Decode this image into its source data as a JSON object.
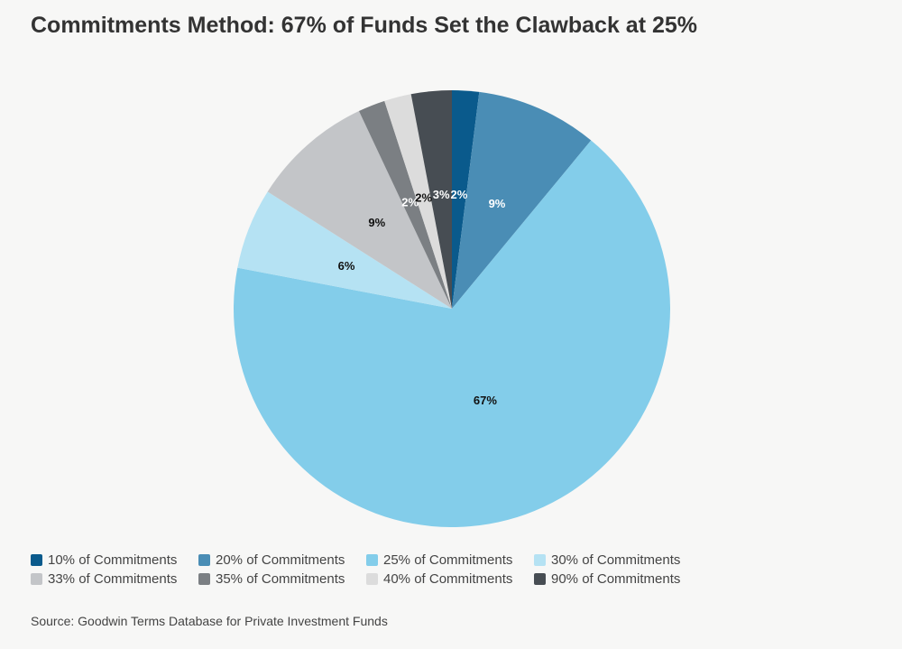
{
  "title": "Commitments Method: 67% of Funds Set the Clawback at 25%",
  "source": "Source: Goodwin Terms Database for Private Investment Funds",
  "chart_data": {
    "type": "pie",
    "title": "Commitments Method: 67% of Funds Set the Clawback at 25%",
    "unit": "%",
    "slices": [
      {
        "name": "10% of Commitments",
        "value": 2,
        "label": "2%",
        "color": "#0a5a8c",
        "label_color": "#ffffff"
      },
      {
        "name": "20% of Commitments",
        "value": 9,
        "label": "9%",
        "color": "#4a8db5",
        "label_color": "#ffffff"
      },
      {
        "name": "25% of Commitments",
        "value": 67,
        "label": "67%",
        "color": "#83cdea",
        "label_color": "#111111"
      },
      {
        "name": "30% of Commitments",
        "value": 6,
        "label": "6%",
        "color": "#b5e2f3",
        "label_color": "#111111"
      },
      {
        "name": "33% of Commitments",
        "value": 9,
        "label": "9%",
        "color": "#c3c5c8",
        "label_color": "#111111"
      },
      {
        "name": "35% of Commitments",
        "value": 2,
        "label": "2%",
        "color": "#7b7f83",
        "label_color": "#ffffff"
      },
      {
        "name": "40% of Commitments",
        "value": 2,
        "label": "2%",
        "color": "#dcdcdc",
        "label_color": "#111111"
      },
      {
        "name": "90% of Commitments",
        "value": 3,
        "label": "3%",
        "color": "#474d53",
        "label_color": "#ffffff"
      }
    ],
    "legend_position": "bottom-left"
  }
}
